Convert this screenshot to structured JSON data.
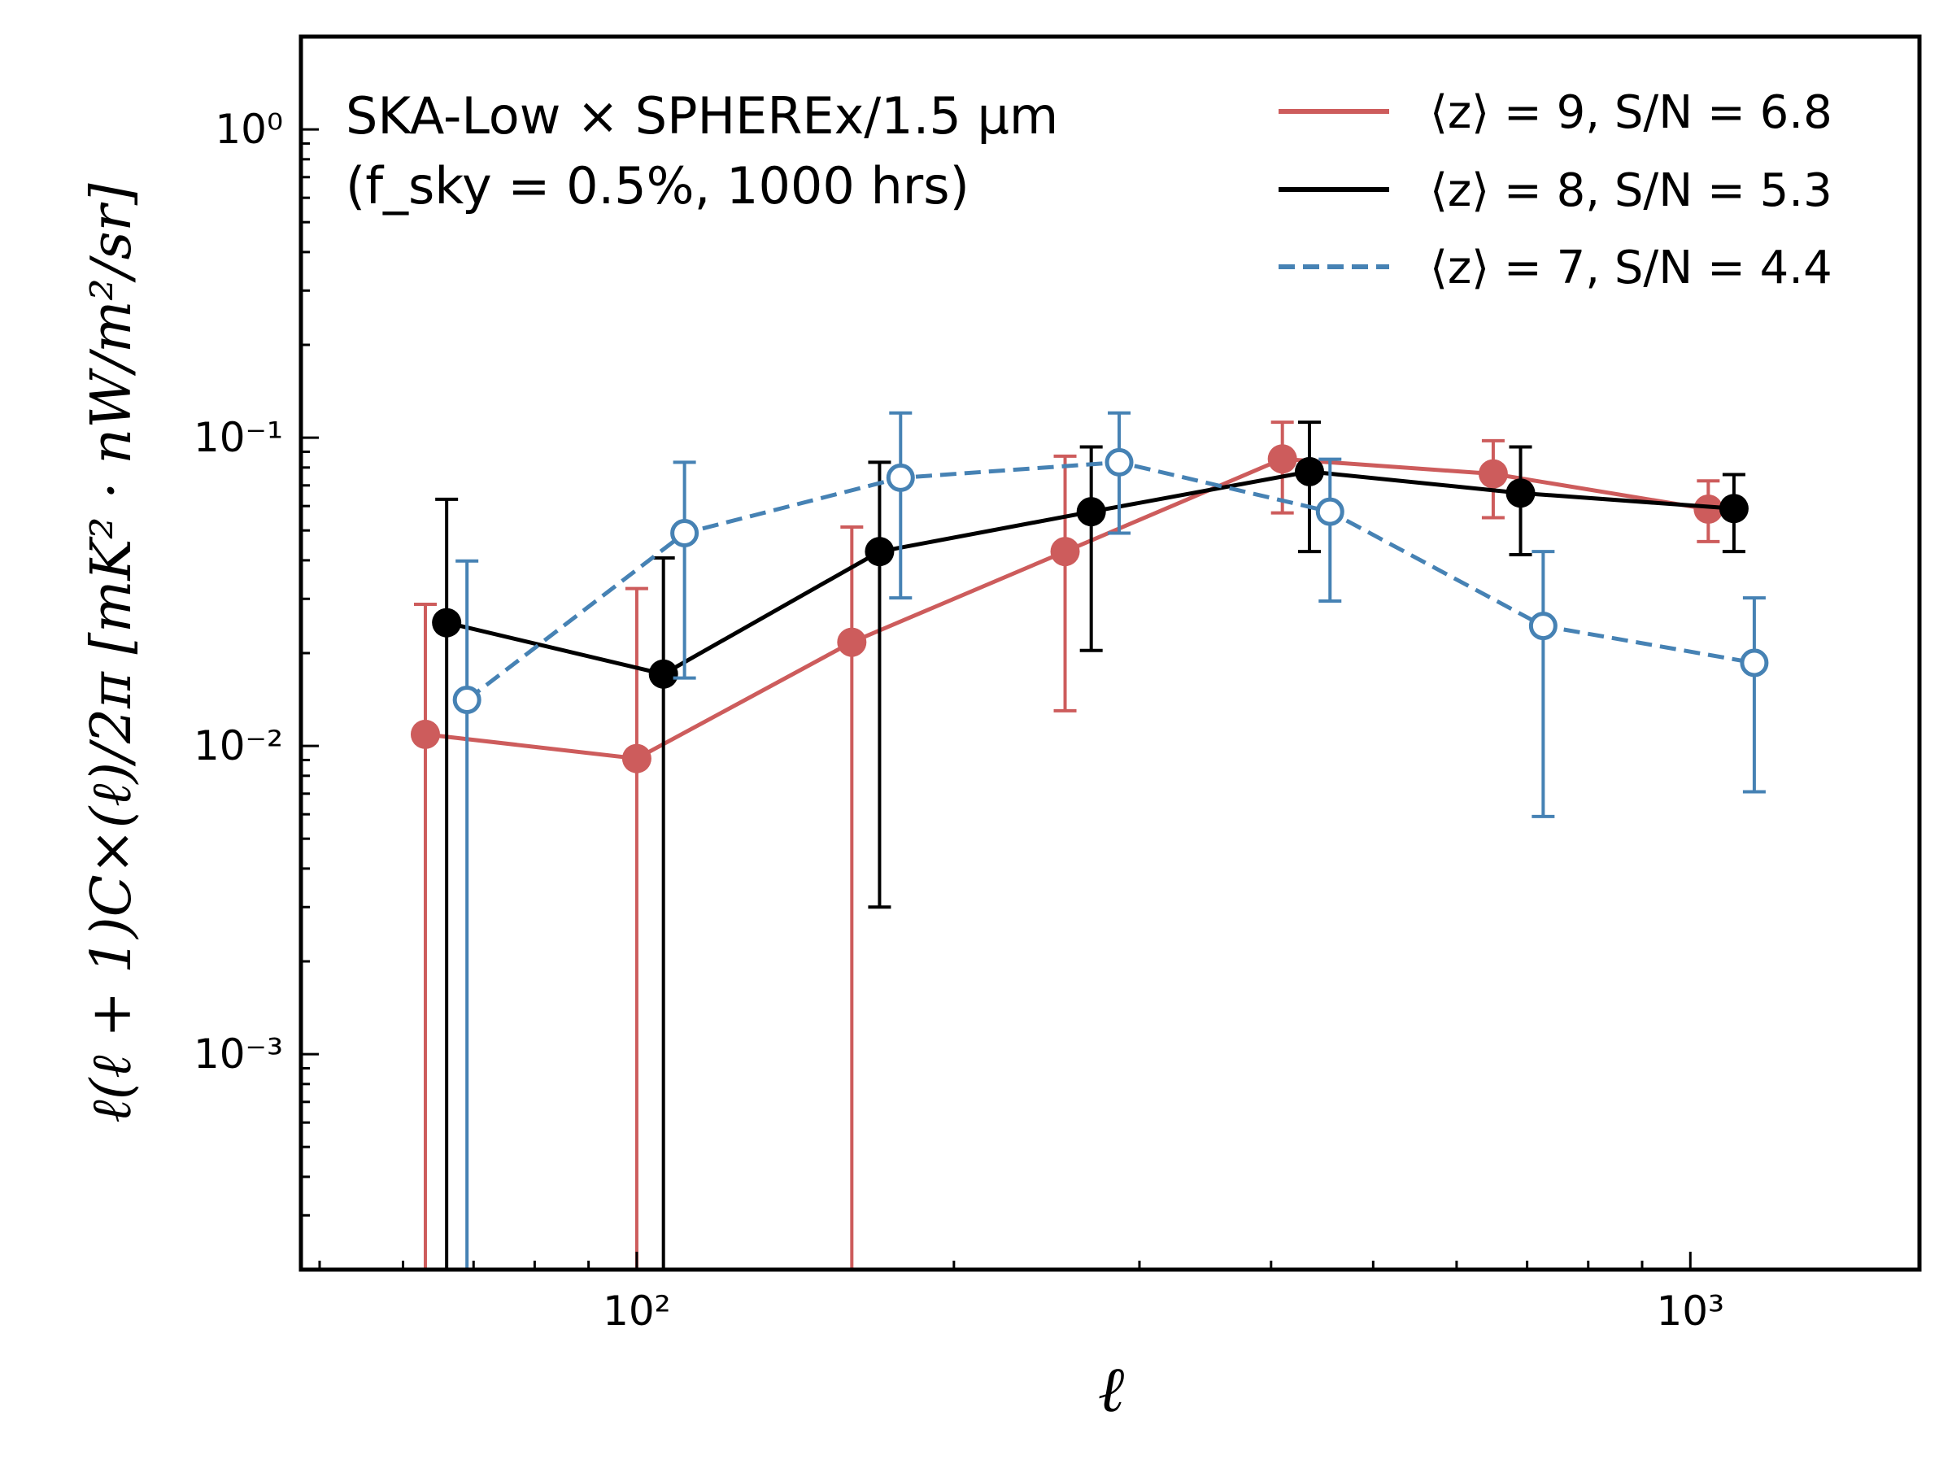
{
  "chart_data": {
    "type": "scatter",
    "title": "",
    "xlabel": "ℓ",
    "ylabel": "ℓ(ℓ + 1)C×(ℓ)/2π [mK² · nW/m²/sr]",
    "xscale": "log",
    "yscale": "log",
    "xlim": [
      48,
      1650
    ],
    "ylim": [
      0.0002,
      2.0
    ],
    "grid": false,
    "legend_position": "top-right",
    "annotation": {
      "line1": "SKA-Low × SPHEREx/1.5 μm",
      "line2": "(f_sky = 0.5%, 1000 hrs)"
    },
    "x_tick_labels": [
      "10²",
      "10³"
    ],
    "x_tick_values": [
      100,
      1000
    ],
    "y_tick_labels": [
      "10⁻³",
      "10⁻²",
      "10⁻¹",
      "10⁰"
    ],
    "y_tick_values": [
      0.001,
      0.01,
      0.1,
      1
    ],
    "series": [
      {
        "name": "⟨z⟩ = 9, S/N = 6.8",
        "color": "#cd5c5c",
        "line_style": "solid",
        "marker": "filled-circle",
        "x": [
          63,
          100,
          160,
          255,
          410,
          650,
          1040
        ],
        "y": [
          0.0109,
          0.0091,
          0.0217,
          0.0427,
          0.0853,
          0.0763,
          0.0586
        ],
        "err_low": [
          0.0001,
          0.0001,
          0.0001,
          0.013,
          0.057,
          0.055,
          0.046
        ],
        "err_high": [
          0.0288,
          0.0324,
          0.0513,
          0.0871,
          0.1122,
          0.0977,
          0.0724
        ]
      },
      {
        "name": "⟨z⟩ = 8, S/N = 5.3",
        "color": "#000000",
        "line_style": "solid",
        "marker": "filled-circle",
        "x": [
          66,
          106,
          170,
          270,
          435,
          690,
          1100
        ],
        "y": [
          0.0251,
          0.0171,
          0.0427,
          0.0575,
          0.0776,
          0.0661,
          0.0589
        ],
        "err_low": [
          0.0001,
          0.0001,
          0.003,
          0.0204,
          0.0427,
          0.0417,
          0.0427
        ],
        "err_high": [
          0.0631,
          0.0407,
          0.0832,
          0.0933,
          0.1122,
          0.0933,
          0.0759
        ]
      },
      {
        "name": "⟨z⟩ = 7, S/N = 4.4",
        "color": "#4682b4",
        "line_style": "dashed",
        "marker": "open-circle",
        "x": [
          69,
          111,
          178,
          287,
          455,
          725,
          1150
        ],
        "y": [
          0.0141,
          0.049,
          0.0741,
          0.0832,
          0.0575,
          0.0245,
          0.0186
        ],
        "err_low": [
          0.0001,
          0.0166,
          0.0302,
          0.049,
          0.0295,
          0.0059,
          0.0071
        ],
        "err_high": [
          0.0398,
          0.0832,
          0.1202,
          0.1202,
          0.0851,
          0.0427,
          0.0302
        ]
      }
    ]
  }
}
